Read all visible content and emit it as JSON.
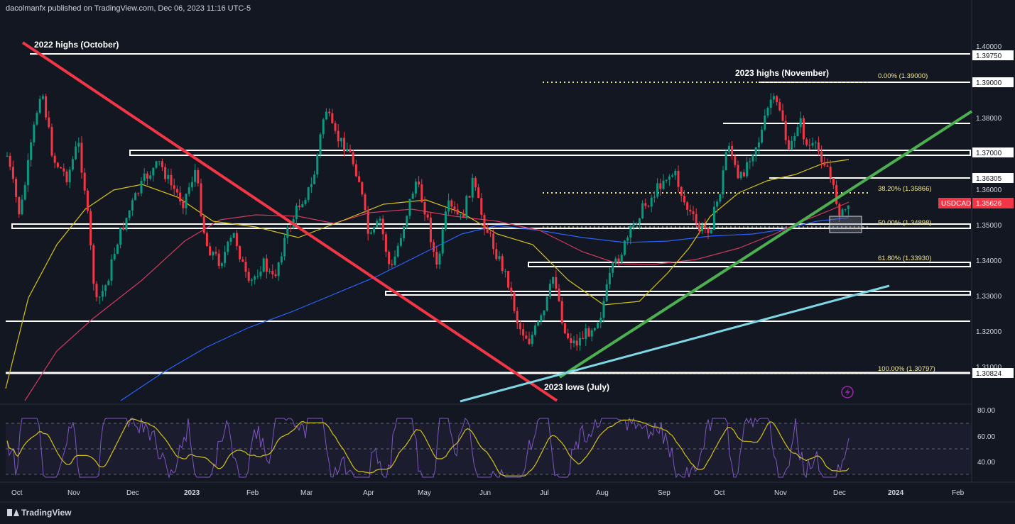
{
  "publisher": "dacolmanfx published on TradingView.com, Dec 06, 2023 11:16 UTC-5",
  "brand": "TradingView",
  "chart_data": {
    "type": "candlestick",
    "symbol": "USDCAD",
    "last_price": "1.35626",
    "price_axis": {
      "range": [
        1.3007,
        1.402
      ],
      "ticks": [
        "1.40000",
        "1.39750",
        "1.39000",
        "1.38000",
        "1.37000",
        "1.36305",
        "1.36000",
        "1.35626",
        "1.35000",
        "1.34000",
        "1.33000",
        "1.32000",
        "1.31000",
        "1.30824"
      ]
    },
    "time_axis": [
      "Oct",
      "Nov",
      "Dec",
      "2023",
      "Feb",
      "Mar",
      "Apr",
      "May",
      "Jun",
      "Jul",
      "Aug",
      "Sep",
      "Oct",
      "Nov",
      "Dec",
      "2024",
      "Feb"
    ],
    "horizontal_levels": [
      {
        "price": 1.3975,
        "label": "1.39750"
      },
      {
        "price": 1.39,
        "label": "1.39000"
      },
      {
        "price": 1.3785
      },
      {
        "price": 1.37,
        "label": "1.37000",
        "zone": [
          1.369,
          1.3702
        ]
      },
      {
        "price": 1.36305,
        "label": "1.36305"
      },
      {
        "price": 1.35,
        "label": "1.35000",
        "zone": [
          1.349,
          1.3502
        ]
      },
      {
        "price": 1.3393,
        "zone": [
          1.3383,
          1.3393
        ]
      },
      {
        "price": 1.3305,
        "zone": [
          1.3303,
          1.3311
        ]
      },
      {
        "price": 1.323
      },
      {
        "price": 1.30824,
        "label": "1.30824"
      }
    ],
    "fibonacci": [
      {
        "label": "0.00% (1.39000)",
        "price": 1.39
      },
      {
        "label": "38.20% (1.35866)",
        "price": 1.35866
      },
      {
        "label": "50.00% (1.34898)",
        "price": 1.34898
      },
      {
        "label": "61.80% (1.33930)",
        "price": 1.3393
      },
      {
        "label": "100.00% (1.30797)",
        "price": 1.30797
      }
    ],
    "annotations": [
      "2022 highs (October)",
      "2023 highs (November)",
      "2023 lows (July)"
    ],
    "trendlines": [
      {
        "name": "downtrend",
        "color": "#f23645"
      },
      {
        "name": "uptrend",
        "color": "#4caf50"
      },
      {
        "name": "support",
        "color": "#7fd6e5"
      }
    ],
    "rsi_axis": {
      "range": [
        30,
        85
      ],
      "ticks": [
        "80.00",
        "60.00",
        "40.00"
      ],
      "band": [
        30,
        70
      ]
    },
    "colors": {
      "up": "#089981",
      "down": "#f23645",
      "ma_fast": "#d4c317",
      "ma_mid": "#d23a5e",
      "ma_slow": "#2962ff",
      "rsi": "#7e57c2",
      "background": "#131722"
    }
  }
}
